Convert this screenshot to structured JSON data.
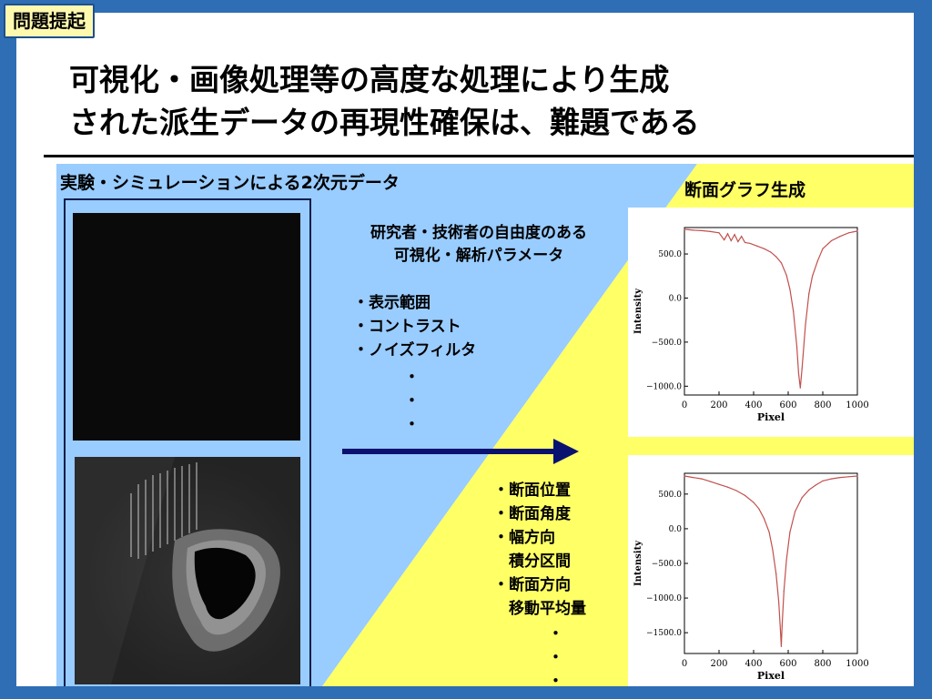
{
  "tag": "問題提起",
  "title": {
    "line1": "可視化・画像処理等の高度な処理により生成",
    "line2": "された派生データの再現性確保は、難題である"
  },
  "left_label": "実験・シミュレーションによる2次元データ",
  "right_label": "断面グラフ生成",
  "params": {
    "title_line1": "研究者・技術者の自由度のある",
    "title_line2": "可視化・解析パラメータ",
    "items": [
      "・表示範囲",
      "・コントラスト",
      "・ノイズフィルタ"
    ],
    "ellipsis": [
      "・",
      "・",
      "・"
    ]
  },
  "section_params": {
    "items": [
      "・断面位置",
      "・断面角度",
      "・幅方向",
      "　積分区間",
      "・断面方向",
      "　移動平均量"
    ],
    "ellipsis": [
      "・",
      "・",
      "・"
    ]
  },
  "colors": {
    "background": "#2f6eb5",
    "blue_panel": "#99ccff",
    "yellow_panel": "#ffff66",
    "arrow": "#0a1270",
    "curve": "#c0504d"
  },
  "chart_data": [
    {
      "type": "line",
      "xlabel": "Pixel",
      "ylabel": "Intensity",
      "xlim": [
        0,
        1000
      ],
      "ylim": [
        -1100,
        800
      ],
      "xticks": [
        0,
        200,
        400,
        600,
        800,
        1000
      ],
      "yticks": [
        500.0,
        0.0,
        -500.0,
        -1000.0
      ],
      "ytick_labels": [
        "500.0",
        "0.0",
        "−500.0",
        "−1000.0"
      ],
      "x": [
        0,
        50,
        100,
        150,
        200,
        230,
        250,
        270,
        290,
        310,
        330,
        350,
        380,
        420,
        460,
        500,
        530,
        560,
        590,
        610,
        630,
        650,
        660,
        670,
        680,
        700,
        720,
        740,
        770,
        800,
        850,
        900,
        950,
        1000
      ],
      "y": [
        780,
        770,
        765,
        755,
        740,
        660,
        730,
        650,
        720,
        640,
        700,
        630,
        620,
        590,
        560,
        520,
        470,
        400,
        260,
        100,
        -150,
        -550,
        -850,
        -1020,
        -800,
        -300,
        50,
        250,
        420,
        560,
        650,
        700,
        740,
        760
      ]
    },
    {
      "type": "line",
      "xlabel": "Pixel",
      "ylabel": "Intensity",
      "xlim": [
        0,
        1000
      ],
      "ylim": [
        -1800,
        800
      ],
      "xticks": [
        0,
        200,
        400,
        600,
        800,
        1000
      ],
      "yticks": [
        500.0,
        0.0,
        -500.0,
        -1000.0,
        -1500.0
      ],
      "ytick_labels": [
        "500.0",
        "0.0",
        "−500.0",
        "−1000.0",
        "−1500.0"
      ],
      "x": [
        0,
        50,
        100,
        150,
        200,
        250,
        300,
        350,
        400,
        430,
        460,
        490,
        510,
        530,
        545,
        555,
        560,
        565,
        575,
        590,
        610,
        640,
        680,
        720,
        760,
        800,
        850,
        900,
        950,
        1000
      ],
      "y": [
        760,
        740,
        720,
        680,
        640,
        600,
        550,
        480,
        380,
        290,
        150,
        -50,
        -300,
        -650,
        -1050,
        -1450,
        -1700,
        -1400,
        -900,
        -450,
        -50,
        250,
        450,
        560,
        630,
        690,
        720,
        740,
        750,
        760
      ]
    }
  ]
}
